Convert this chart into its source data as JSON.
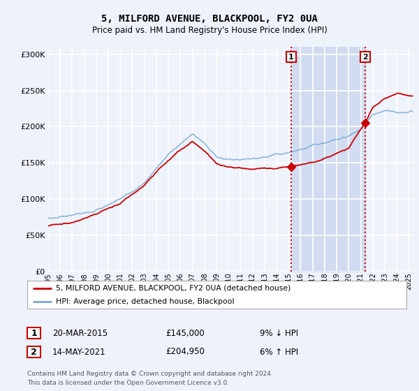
{
  "title": "5, MILFORD AVENUE, BLACKPOOL, FY2 0UA",
  "subtitle": "Price paid vs. HM Land Registry's House Price Index (HPI)",
  "ylabel_ticks": [
    "£0",
    "£50K",
    "£100K",
    "£150K",
    "£200K",
    "£250K",
    "£300K"
  ],
  "ylim": [
    0,
    310000
  ],
  "yticks": [
    0,
    50000,
    100000,
    150000,
    200000,
    250000,
    300000
  ],
  "xlim_start": 1995.0,
  "xlim_end": 2025.5,
  "background_color": "#eef2fb",
  "plot_bg_color": "#eef2fb",
  "grid_color": "#ffffff",
  "hpi_color": "#7aaad4",
  "price_color": "#cc0000",
  "vline_color": "#cc0000",
  "point1_x": 2015.22,
  "point1_y": 145000,
  "point2_x": 2021.37,
  "point2_y": 204950,
  "legend_line1": "5, MILFORD AVENUE, BLACKPOOL, FY2 0UA (detached house)",
  "legend_line2": "HPI: Average price, detached house, Blackpool",
  "annotation1_date": "20-MAR-2015",
  "annotation1_price": "£145,000",
  "annotation1_hpi": "9% ↓ HPI",
  "annotation2_date": "14-MAY-2021",
  "annotation2_price": "£204,950",
  "annotation2_hpi": "6% ↑ HPI",
  "footer": "Contains HM Land Registry data © Crown copyright and database right 2024.\nThis data is licensed under the Open Government Licence v3.0.",
  "shaded_region_start": 2015.22,
  "shaded_region_end": 2021.37
}
